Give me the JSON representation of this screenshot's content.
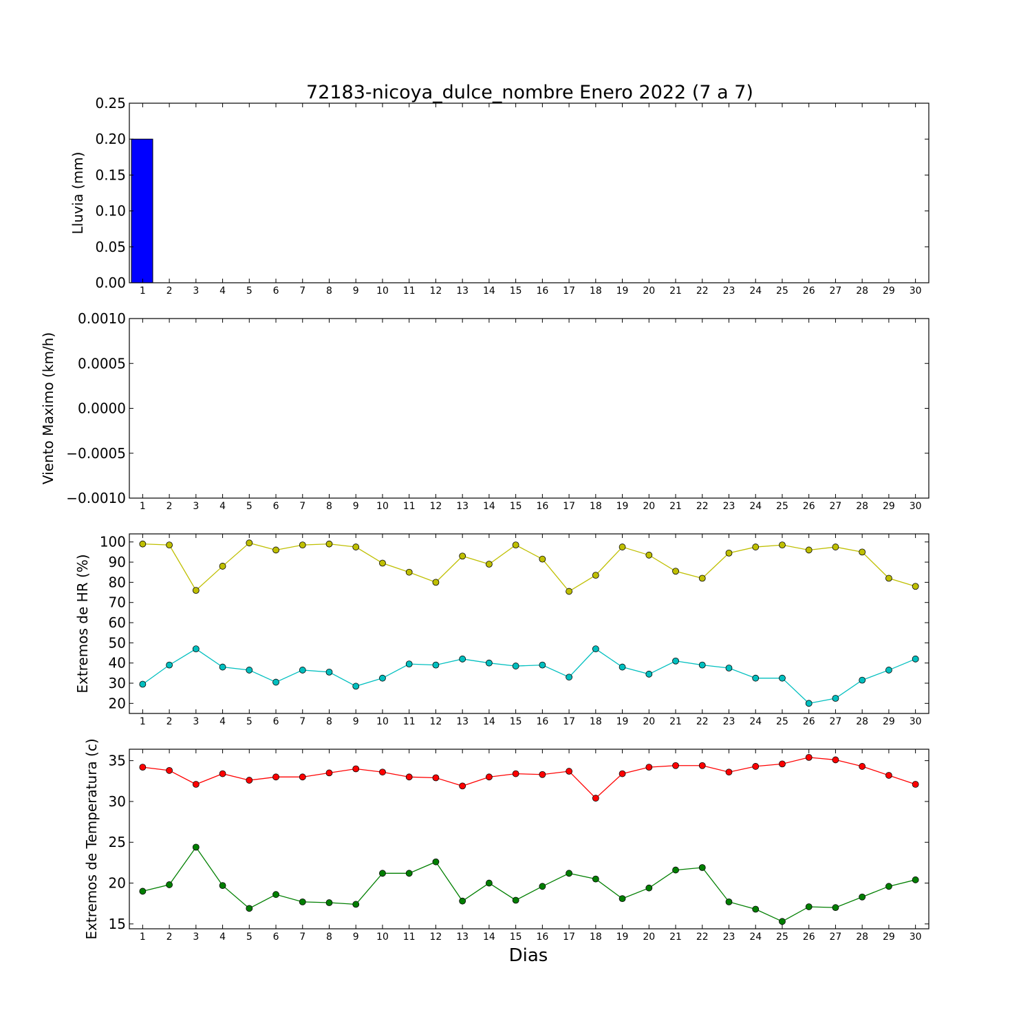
{
  "title": "72183-nicoya_dulce_nombre Enero 2022  (7 a 7)",
  "xlabel": "Dias",
  "chart_data": [
    {
      "type": "bar",
      "ylabel": "Lluvia (mm)",
      "x": [
        1,
        2,
        3,
        4,
        5,
        6,
        7,
        8,
        9,
        10,
        11,
        12,
        13,
        14,
        15,
        16,
        17,
        18,
        19,
        20,
        21,
        22,
        23,
        24,
        25,
        26,
        27,
        28,
        29,
        30
      ],
      "values": [
        0.2,
        0,
        0,
        0,
        0,
        0,
        0,
        0,
        0,
        0,
        0,
        0,
        0,
        0,
        0,
        0,
        0,
        0,
        0,
        0,
        0,
        0,
        0,
        0,
        0,
        0,
        0,
        0,
        0,
        0
      ],
      "ylim": [
        0,
        0.25
      ],
      "yticks": [
        "0.00",
        "0.05",
        "0.10",
        "0.15",
        "0.20",
        "0.25"
      ],
      "color": "#0000ff"
    },
    {
      "type": "line",
      "ylabel": "Viento Maximo (km/h)",
      "x": [
        1,
        2,
        3,
        4,
        5,
        6,
        7,
        8,
        9,
        10,
        11,
        12,
        13,
        14,
        15,
        16,
        17,
        18,
        19,
        20,
        21,
        22,
        23,
        24,
        25,
        26,
        27,
        28,
        29,
        30
      ],
      "series": [],
      "ylim": [
        -0.001,
        0.001
      ],
      "yticks": [
        "−0.0010",
        "−0.0005",
        "0.0000",
        "0.0005",
        "0.0010"
      ]
    },
    {
      "type": "line",
      "ylabel": "Extremos de HR (%)",
      "x": [
        1,
        2,
        3,
        4,
        5,
        6,
        7,
        8,
        9,
        10,
        11,
        12,
        13,
        14,
        15,
        16,
        17,
        18,
        19,
        20,
        21,
        22,
        23,
        24,
        25,
        26,
        27,
        28,
        29,
        30
      ],
      "series": [
        {
          "color": "#bfbf00",
          "values": [
            99,
            98.5,
            76,
            88,
            99.5,
            96,
            98.5,
            99,
            97.5,
            89.5,
            85,
            80,
            93,
            89,
            98.5,
            91.5,
            75.5,
            83.5,
            97.5,
            93.5,
            85.5,
            82,
            94.5,
            97.5,
            98.5,
            96,
            97.5,
            95,
            82,
            78
          ]
        },
        {
          "color": "#00bfbf",
          "values": [
            29.5,
            39,
            47,
            38,
            36.5,
            30.5,
            36.5,
            35.5,
            28.5,
            32.5,
            39.5,
            39,
            42,
            40,
            38.5,
            39,
            33,
            47,
            38,
            34.5,
            41,
            39,
            37.5,
            32.5,
            32.5,
            20,
            22.5,
            31.5,
            36.5,
            42
          ]
        }
      ],
      "ylim": [
        15,
        104
      ],
      "yticks": [
        "20",
        "30",
        "40",
        "50",
        "60",
        "70",
        "80",
        "90",
        "100"
      ]
    },
    {
      "type": "line",
      "ylabel": "Extremos de Temperatura (c)",
      "x": [
        1,
        2,
        3,
        4,
        5,
        6,
        7,
        8,
        9,
        10,
        11,
        12,
        13,
        14,
        15,
        16,
        17,
        18,
        19,
        20,
        21,
        22,
        23,
        24,
        25,
        26,
        27,
        28,
        29,
        30
      ],
      "series": [
        {
          "color": "#ff0000",
          "values": [
            34.2,
            33.8,
            32.1,
            33.4,
            32.6,
            33,
            33,
            33.5,
            34,
            33.6,
            33,
            32.9,
            31.9,
            33,
            33.4,
            33.3,
            33.7,
            30.4,
            33.4,
            34.2,
            34.4,
            34.4,
            33.6,
            34.3,
            34.6,
            35.4,
            35.1,
            34.3,
            33.2,
            32.1
          ]
        },
        {
          "color": "#007f00",
          "values": [
            19,
            19.8,
            24.4,
            19.7,
            16.9,
            18.6,
            17.7,
            17.6,
            17.4,
            21.2,
            21.2,
            22.6,
            17.8,
            20,
            17.9,
            19.6,
            21.2,
            20.5,
            18.1,
            19.4,
            21.6,
            21.9,
            17.7,
            16.8,
            15.3,
            17.1,
            17,
            18.3,
            19.6,
            20.4
          ]
        }
      ],
      "ylim": [
        14.4,
        36.4
      ],
      "yticks": [
        "15",
        "20",
        "25",
        "30",
        "35"
      ]
    }
  ]
}
